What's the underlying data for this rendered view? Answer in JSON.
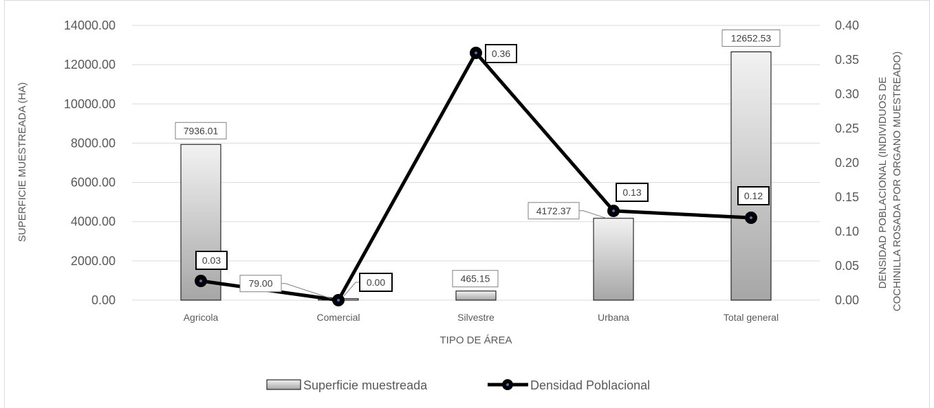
{
  "chart_data": {
    "type": "bar",
    "categories": [
      "Agricola",
      "Comercial",
      "Silvestre",
      "Urbana",
      "Total general"
    ],
    "series": [
      {
        "name": "Superficie muestreada",
        "type": "bar",
        "axis": "left",
        "values": [
          7936.01,
          79.0,
          465.15,
          4172.37,
          12652.53
        ],
        "labels": [
          "7936.01",
          "79.00",
          "465.15",
          "4172.37",
          "12652.53"
        ]
      },
      {
        "name": "Densidad Poblacional",
        "type": "line",
        "axis": "right",
        "values": [
          0.028,
          0.0,
          0.36,
          0.13,
          0.12
        ],
        "labels": [
          "0.03",
          "0.00",
          "0.36",
          "0.13",
          "0.12"
        ]
      }
    ],
    "xlabel": "TIPO DE ÁREA",
    "ylabel": "SUPERFICIE MUESTREADA (HA)",
    "y2label_lines": [
      "DENSIDAD POBLACIONAL (INDIVIDUOS DE",
      "COCHINILLA ROSADA POR ORGANO MUESTREADO)"
    ],
    "ylim": [
      0,
      14000
    ],
    "y2lim": [
      0,
      0.4
    ],
    "yticks": [
      "0.00",
      "2000.00",
      "4000.00",
      "6000.00",
      "8000.00",
      "10000.00",
      "12000.00",
      "14000.00"
    ],
    "y2ticks": [
      "0.00",
      "0.05",
      "0.10",
      "0.15",
      "0.20",
      "0.25",
      "0.30",
      "0.35",
      "0.40"
    ],
    "grid": true,
    "legend_position": "bottom",
    "colors": {
      "bar_top": "#f2f2f2",
      "bar_bottom": "#a6a6a6",
      "bar_border": "#000000",
      "line": "#000000",
      "marker_center": "#4472c4",
      "label_border_bar": "#7f7f7f",
      "label_border_line": "#000000"
    }
  }
}
